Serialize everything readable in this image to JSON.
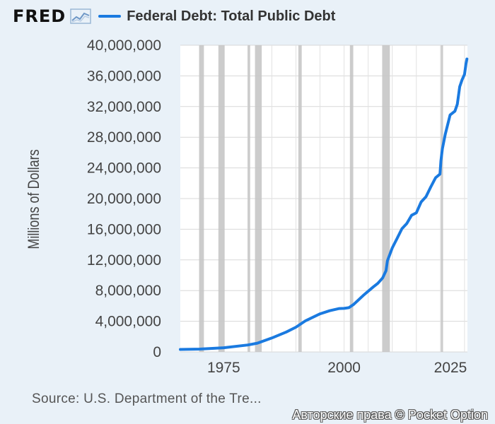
{
  "header": {
    "logo_text": "FRED",
    "logo_icon": "line-chart-icon",
    "legend_label": "Federal Debt: Total Public Debt",
    "series_color": "#1a7ae0"
  },
  "chart_data": {
    "type": "line",
    "title": "Federal Debt: Total Public Debt",
    "ylabel": "Millions of Dollars",
    "xlabel": "",
    "xlim": [
      1966,
      2025.6
    ],
    "ylim": [
      0,
      40000000
    ],
    "y_ticks": [
      0,
      4000000,
      8000000,
      12000000,
      16000000,
      20000000,
      24000000,
      28000000,
      32000000,
      36000000,
      40000000
    ],
    "y_tick_labels": [
      "0",
      "4,000,000",
      "8,000,000",
      "12,000,000",
      "16,000,000",
      "20,000,000",
      "24,000,000",
      "28,000,000",
      "32,000,000",
      "36,000,000",
      "40,000,000"
    ],
    "x_ticks": [
      1975,
      2000,
      2025
    ],
    "x_tick_labels": [
      "1975",
      "2000",
      "2025"
    ],
    "grid": true,
    "recessions": [
      [
        1969.9,
        1970.9
      ],
      [
        1973.9,
        1975.2
      ],
      [
        1980.0,
        1980.5
      ],
      [
        1981.5,
        1982.9
      ],
      [
        1990.5,
        1991.2
      ],
      [
        2001.2,
        2001.9
      ],
      [
        2007.9,
        2009.5
      ],
      [
        2020.1,
        2020.4
      ]
    ],
    "series": [
      {
        "name": "Federal Debt: Total Public Debt",
        "color": "#1a7ae0",
        "x": [
          1966,
          1970,
          1975,
          1980,
          1982,
          1985,
          1988,
          1990,
          1992,
          1995,
          1997,
          1999,
          2000,
          2001,
          2002,
          2004,
          2006,
          2007,
          2008,
          2008.7,
          2009,
          2010,
          2011,
          2012,
          2013,
          2014,
          2015,
          2016,
          2017,
          2018,
          2019,
          2019.9,
          2020.1,
          2020.4,
          2021,
          2022,
          2023,
          2023.5,
          2024,
          2024.5,
          2025,
          2025.3,
          2025.5
        ],
        "y": [
          320000,
          370000,
          540000,
          900000,
          1140000,
          1820000,
          2600000,
          3230000,
          4060000,
          4970000,
          5370000,
          5660000,
          5680000,
          5770000,
          6200000,
          7380000,
          8450000,
          8950000,
          9650000,
          10600000,
          11900000,
          13560000,
          14790000,
          16070000,
          16740000,
          17820000,
          18150000,
          19570000,
          20240000,
          21520000,
          22720000,
          23200000,
          24900000,
          26500000,
          28400000,
          30900000,
          31400000,
          32300000,
          34600000,
          35500000,
          36200000,
          37600000,
          38200000
        ]
      }
    ]
  },
  "footer": {
    "source": "Source: U.S. Department of the Tre...",
    "copyright": "Авторские права © Pocket Option"
  }
}
